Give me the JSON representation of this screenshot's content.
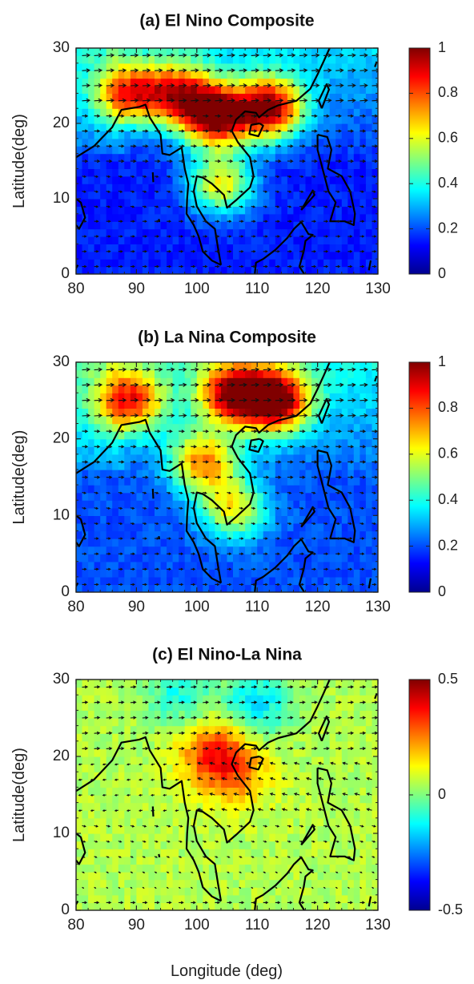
{
  "figure": {
    "xlabel": "Longitude (deg)"
  },
  "chart_data": [
    {
      "type": "heatmap",
      "title": "(a) El Nino Composite",
      "xlabel": "",
      "ylabel": "Latitude(deg)",
      "x_ticks": [
        "80",
        "90",
        "100",
        "110",
        "120",
        "130"
      ],
      "y_ticks": [
        "0",
        "10",
        "20",
        "30"
      ],
      "xlim": [
        80,
        130
      ],
      "ylim": [
        0,
        30
      ],
      "colorbar": {
        "ticks": [
          "0",
          "0.2",
          "0.4",
          "0.6",
          "0.8",
          "1"
        ],
        "range": [
          0,
          1
        ],
        "colormap": "jet"
      },
      "overlay": "wind vectors and coastlines",
      "hotspots": [
        {
          "lon": 103,
          "lat": 21,
          "value": 0.95
        },
        {
          "lon": 112,
          "lat": 22,
          "value": 0.9
        },
        {
          "lon": 89,
          "lat": 24,
          "value": 0.72
        },
        {
          "lon": 97,
          "lat": 24,
          "value": 0.68
        },
        {
          "lon": 104,
          "lat": 12,
          "value": 0.62
        }
      ],
      "background_value": 0.15
    },
    {
      "type": "heatmap",
      "title": "(b) La Nina Composite",
      "xlabel": "",
      "ylabel": "Latitude(deg)",
      "x_ticks": [
        "80",
        "90",
        "100",
        "110",
        "120",
        "130"
      ],
      "y_ticks": [
        "0",
        "10",
        "20",
        "30"
      ],
      "xlim": [
        80,
        130
      ],
      "ylim": [
        0,
        30
      ],
      "colorbar": {
        "ticks": [
          "0",
          "0.2",
          "0.4",
          "0.6",
          "0.8",
          "1"
        ],
        "range": [
          0,
          1
        ],
        "colormap": "jet"
      },
      "overlay": "wind vectors and coastlines",
      "hotspots": [
        {
          "lon": 113,
          "lat": 25,
          "value": 0.95
        },
        {
          "lon": 106,
          "lat": 26,
          "value": 0.85
        },
        {
          "lon": 89,
          "lat": 25,
          "value": 0.75
        },
        {
          "lon": 101,
          "lat": 17,
          "value": 0.7
        },
        {
          "lon": 106,
          "lat": 11,
          "value": 0.62
        }
      ],
      "background_value": 0.2
    },
    {
      "type": "heatmap",
      "title": "(c) El Nino-La Nina",
      "xlabel": "Longitude (deg)",
      "ylabel": "Latitude(deg)",
      "x_ticks": [
        "80",
        "90",
        "100",
        "110",
        "120",
        "130"
      ],
      "y_ticks": [
        "0",
        "10",
        "20",
        "30"
      ],
      "xlim": [
        80,
        130
      ],
      "ylim": [
        0,
        30
      ],
      "colorbar": {
        "ticks": [
          "-0.5",
          "0",
          "0.5"
        ],
        "range": [
          -0.5,
          0.5
        ],
        "colormap": "jet"
      },
      "overlay": "wind vectors and coastlines",
      "hotspots": [
        {
          "lon": 103,
          "lat": 20.5,
          "value": 0.35
        },
        {
          "lon": 107,
          "lat": 17,
          "value": 0.2
        },
        {
          "lon": 110,
          "lat": 27,
          "value": -0.15
        },
        {
          "lon": 97,
          "lat": 28,
          "value": -0.1
        }
      ],
      "background_value": 0.05
    }
  ]
}
